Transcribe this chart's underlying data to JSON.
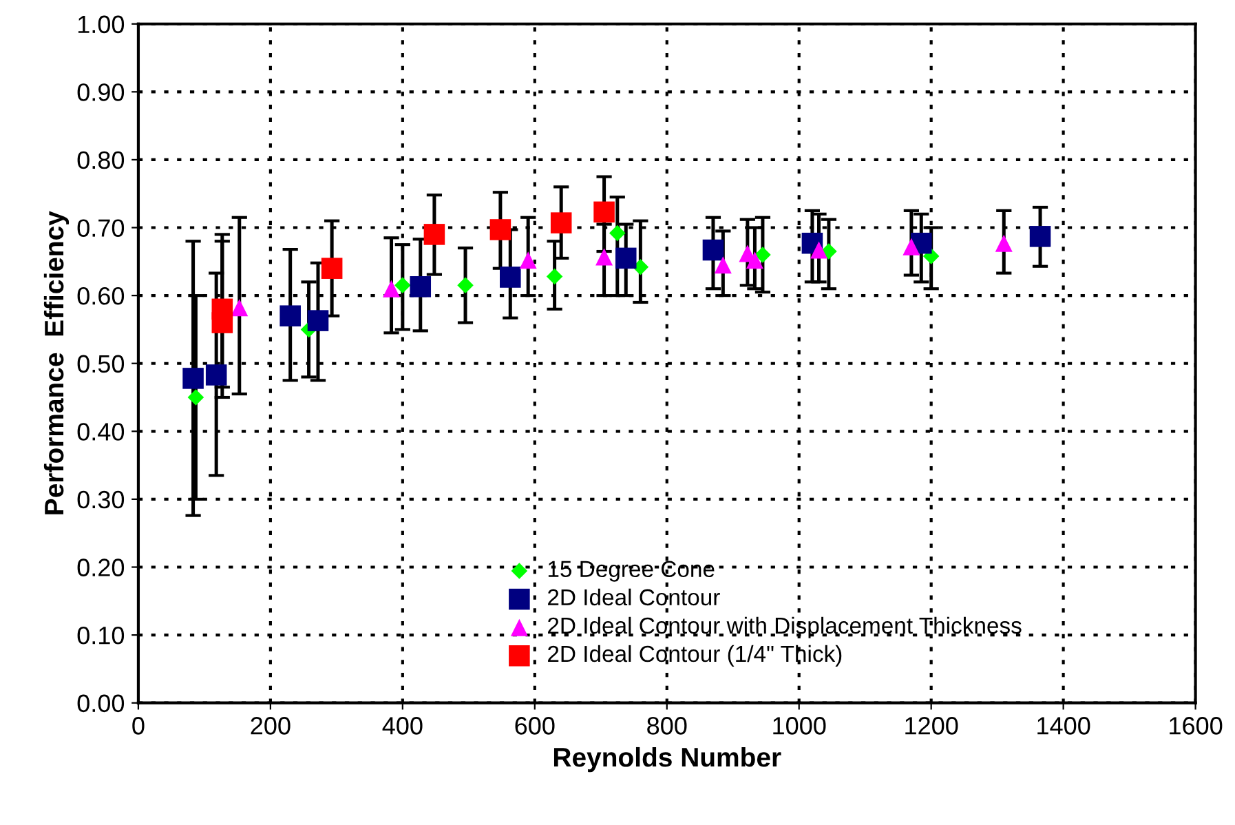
{
  "chart_data": {
    "type": "scatter",
    "xlabel": "Reynolds Number",
    "ylabel": "Performance  Efficiency",
    "xlim": [
      0,
      1600
    ],
    "xticks": [
      0,
      200,
      400,
      600,
      800,
      1000,
      1200,
      1400,
      1600
    ],
    "ylim": [
      0,
      1
    ],
    "yticks": [
      {
        "value": 0,
        "label": "0.00"
      },
      {
        "value": 0.1,
        "label": "0.10"
      },
      {
        "value": 0.2,
        "label": "0.20"
      },
      {
        "value": 0.3,
        "label": "0.30"
      },
      {
        "value": 0.4,
        "label": "0.40"
      },
      {
        "value": 0.5,
        "label": "0.50"
      },
      {
        "value": 0.6,
        "label": "0.60"
      },
      {
        "value": 0.7,
        "label": "0.70"
      },
      {
        "value": 0.8,
        "label": "0.80"
      },
      {
        "value": 0.9,
        "label": "0.90"
      },
      {
        "value": 1,
        "label": "1.00"
      }
    ],
    "grid": true,
    "legend": "bottom",
    "line_style": "dotted",
    "series": [
      {
        "name": "15 Degree Cone",
        "color": "#00ff00",
        "marker": "diamond",
        "x": [
          87,
          258,
          400,
          495,
          630,
          725,
          760,
          945,
          1045,
          1200
        ],
        "values": [
          0.45,
          0.55,
          0.615,
          0.615,
          0.628,
          0.692,
          0.642,
          0.66,
          0.665,
          0.658
        ],
        "errors": [
          [
            0.3,
            0.6
          ],
          [
            0.48,
            0.62
          ],
          [
            0.55,
            0.675
          ],
          [
            0.56,
            0.67
          ],
          [
            0.58,
            0.68
          ],
          [
            0.6,
            0.745
          ],
          [
            0.59,
            0.71
          ],
          [
            0.605,
            0.715
          ],
          [
            0.61,
            0.712
          ],
          [
            0.61,
            0.7
          ]
        ]
      },
      {
        "name": "2D Ideal Contour",
        "color": "#000080",
        "marker": "square",
        "x": [
          83,
          118,
          230,
          272,
          427,
          563,
          738,
          870,
          1020,
          1185,
          1365
        ],
        "values": [
          0.478,
          0.483,
          0.57,
          0.563,
          0.613,
          0.627,
          0.655,
          0.667,
          0.677,
          0.677,
          0.687
        ],
        "errors": [
          [
            0.276,
            0.68
          ],
          [
            0.335,
            0.633
          ],
          [
            0.475,
            0.668
          ],
          [
            0.475,
            0.648
          ],
          [
            0.548,
            0.683
          ],
          [
            0.567,
            0.697
          ],
          [
            0.6,
            0.705
          ],
          [
            0.61,
            0.715
          ],
          [
            0.62,
            0.725
          ],
          [
            0.62,
            0.72
          ],
          [
            0.643,
            0.73
          ]
        ]
      },
      {
        "name": "2D Ideal Contour with Displacement Thickness",
        "color": "#ff00ff",
        "marker": "triangle",
        "x": [
          153,
          383,
          590,
          705,
          885,
          922,
          933,
          1030,
          1170,
          1310
        ],
        "values": [
          0.582,
          0.61,
          0.652,
          0.657,
          0.645,
          0.662,
          0.652,
          0.667,
          0.672,
          0.677
        ],
        "errors": [
          [
            0.455,
            0.715
          ],
          [
            0.545,
            0.685
          ],
          [
            0.6,
            0.715
          ],
          [
            0.6,
            0.705
          ],
          [
            0.6,
            0.695
          ],
          [
            0.615,
            0.712
          ],
          [
            0.61,
            0.7
          ],
          [
            0.62,
            0.72
          ],
          [
            0.63,
            0.725
          ],
          [
            0.633,
            0.725
          ]
        ]
      },
      {
        "name": "2D Ideal Contour (1/4\" Thick)",
        "color": "#ff0000",
        "marker": "square",
        "x": [
          127,
          127,
          293,
          448,
          548,
          640,
          705
        ],
        "values": [
          0.58,
          0.56,
          0.64,
          0.69,
          0.697,
          0.707,
          0.723
        ],
        "errors": [
          [
            0.465,
            0.69
          ],
          [
            0.45,
            0.68
          ],
          [
            0.57,
            0.71
          ],
          [
            0.631,
            0.748
          ],
          [
            0.64,
            0.752
          ],
          [
            0.655,
            0.76
          ],
          [
            0.665,
            0.775
          ]
        ]
      }
    ]
  }
}
